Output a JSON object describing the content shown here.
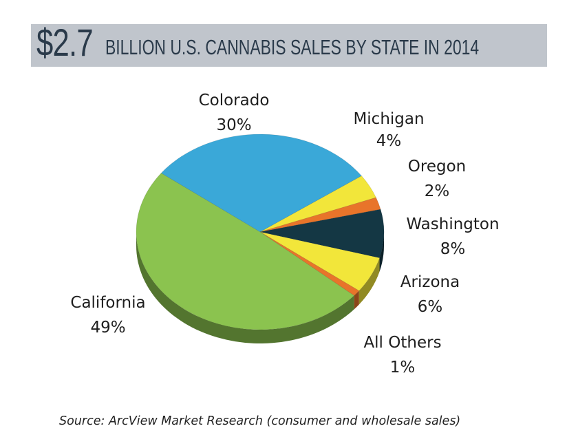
{
  "chart_data": {
    "type": "pie",
    "title_amount": "$2.7",
    "title": "BILLION U.S. CANNABIS SALES BY STATE IN 2014",
    "source": "Source: ArcView Market Research (consumer and wholesale sales)",
    "unit": "%",
    "slices": [
      {
        "name": "Colorado",
        "value": 30,
        "label": "30%",
        "color": "#3aa8d8"
      },
      {
        "name": "Michigan",
        "value": 4,
        "label": "4%",
        "color": "#f2e63a"
      },
      {
        "name": "Oregon",
        "value": 2,
        "label": "2%",
        "color": "#e8742a"
      },
      {
        "name": "Washington",
        "value": 8,
        "label": "8%",
        "color": "#143744"
      },
      {
        "name": "Arizona",
        "value": 6,
        "label": "6%",
        "color": "#f2e63a"
      },
      {
        "name": "All Others",
        "value": 1,
        "label": "1%",
        "color": "#e8742a"
      },
      {
        "name": "California",
        "value": 49,
        "label": "49%",
        "color": "#8bc34f"
      }
    ]
  },
  "colors": {
    "title_bar": "#c0c5cc",
    "title_text": "#2a3a4a"
  }
}
